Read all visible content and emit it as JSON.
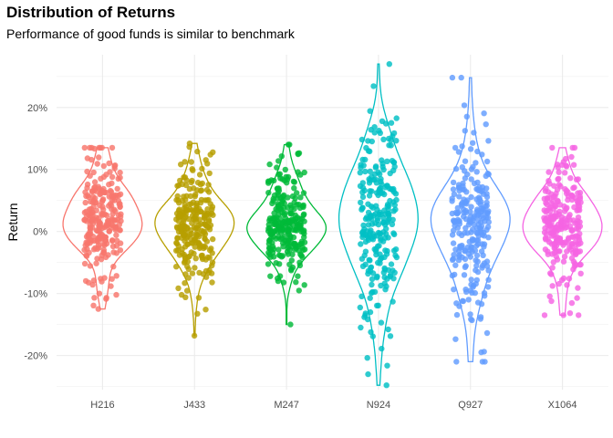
{
  "chart_data": {
    "type": "violin",
    "title": "Distribution of Returns",
    "subtitle": "Performance of good funds is similar to benchmark",
    "xlabel": "",
    "ylabel": "Return",
    "ylim": [
      -0.255,
      0.285
    ],
    "yticks": [
      -0.2,
      -0.1,
      0.0,
      0.1,
      0.2
    ],
    "ytick_labels": [
      "-20%",
      "-10%",
      "0%",
      "10%",
      "20%"
    ],
    "grid": true,
    "legend": "none",
    "categories": [
      "H216",
      "J433",
      "M247",
      "N924",
      "Q927",
      "X1064"
    ],
    "series": [
      {
        "category": "H216",
        "color": "#F8766D",
        "min": -0.125,
        "max": 0.135,
        "sd": 0.045,
        "mean": 0.015,
        "n": 250
      },
      {
        "category": "J433",
        "color": "#B79F00",
        "min": -0.168,
        "max": 0.142,
        "sd": 0.045,
        "mean": 0.01,
        "n": 250
      },
      {
        "category": "M247",
        "color": "#00BA38",
        "min": -0.15,
        "max": 0.14,
        "sd": 0.042,
        "mean": 0.015,
        "n": 250
      },
      {
        "category": "N924",
        "color": "#00BFC4",
        "min": -0.248,
        "max": 0.27,
        "sd": 0.075,
        "mean": 0.015,
        "n": 250
      },
      {
        "category": "Q927",
        "color": "#619CFF",
        "min": -0.21,
        "max": 0.248,
        "sd": 0.07,
        "mean": 0.01,
        "n": 250
      },
      {
        "category": "X1064",
        "color": "#F564E3",
        "min": -0.135,
        "max": 0.135,
        "sd": 0.045,
        "mean": 0.01,
        "n": 250
      }
    ]
  }
}
